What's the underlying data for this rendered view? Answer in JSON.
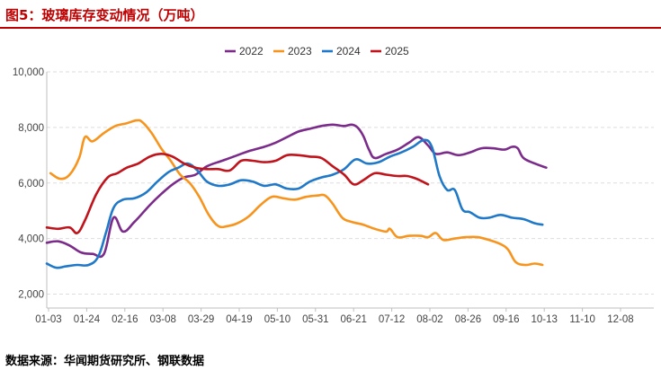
{
  "header": {
    "title": "图5：玻璃库存变动情况（万吨）"
  },
  "footer": {
    "source": "数据来源：华闻期货研究所、钢联数据"
  },
  "colors": {
    "2022": "#7B2C8A",
    "2023": "#F7941D",
    "2024": "#1F78C8",
    "2025": "#C0141C",
    "grid": "#dddddd",
    "axis": "#bfbfbf",
    "title": "#c00000"
  },
  "chart_data": {
    "type": "line",
    "title": "玻璃库存变动情况（万吨）",
    "xlabel": "",
    "ylabel": "",
    "ylim": [
      1500,
      10000
    ],
    "y_ticks": [
      2000,
      4000,
      6000,
      8000,
      10000
    ],
    "y_tick_labels": [
      "2,000",
      "4,000",
      "6,000",
      "8,000",
      "10,000"
    ],
    "grid": true,
    "legend_position": "top-center",
    "categories": [
      "01-03",
      "01-24",
      "02-16",
      "03-08",
      "03-29",
      "04-19",
      "05-10",
      "05-31",
      "06-21",
      "07-12",
      "08-02",
      "08-26",
      "09-16",
      "10-13",
      "11-10",
      "12-08"
    ],
    "series": [
      {
        "name": "2022",
        "values": [
          [
            0,
            3850
          ],
          [
            0.3,
            3900
          ],
          [
            0.6,
            3750
          ],
          [
            0.9,
            3500
          ],
          [
            1.2,
            3450
          ],
          [
            1.5,
            3450
          ],
          [
            1.75,
            4750
          ],
          [
            2.0,
            4250
          ],
          [
            2.3,
            4600
          ],
          [
            2.7,
            5200
          ],
          [
            3.0,
            5600
          ],
          [
            3.3,
            5950
          ],
          [
            3.6,
            6200
          ],
          [
            3.9,
            6300
          ],
          [
            4.2,
            6600
          ],
          [
            4.6,
            6800
          ],
          [
            5.0,
            7000
          ],
          [
            5.3,
            7150
          ],
          [
            5.7,
            7300
          ],
          [
            6.0,
            7450
          ],
          [
            6.3,
            7650
          ],
          [
            6.6,
            7850
          ],
          [
            6.9,
            7950
          ],
          [
            7.2,
            8050
          ],
          [
            7.5,
            8100
          ],
          [
            7.8,
            8050
          ],
          [
            8.0,
            8100
          ],
          [
            8.15,
            8000
          ],
          [
            8.3,
            7700
          ],
          [
            8.45,
            7200
          ],
          [
            8.6,
            6900
          ],
          [
            8.9,
            7050
          ],
          [
            9.2,
            7200
          ],
          [
            9.5,
            7450
          ],
          [
            9.75,
            7650
          ],
          [
            10.0,
            7350
          ],
          [
            10.2,
            7050
          ],
          [
            10.5,
            7100
          ],
          [
            10.8,
            7000
          ],
          [
            11.1,
            7100
          ],
          [
            11.4,
            7250
          ],
          [
            11.7,
            7250
          ],
          [
            12.0,
            7200
          ],
          [
            12.2,
            7300
          ],
          [
            12.35,
            7250
          ],
          [
            12.5,
            6900
          ],
          [
            12.8,
            6700
          ],
          [
            13.1,
            6550
          ]
        ]
      },
      {
        "name": "2023",
        "values": [
          [
            0.1,
            6350
          ],
          [
            0.35,
            6150
          ],
          [
            0.6,
            6300
          ],
          [
            0.85,
            6900
          ],
          [
            1.0,
            7650
          ],
          [
            1.2,
            7500
          ],
          [
            1.5,
            7800
          ],
          [
            1.8,
            8050
          ],
          [
            2.1,
            8150
          ],
          [
            2.35,
            8250
          ],
          [
            2.5,
            8200
          ],
          [
            2.75,
            7800
          ],
          [
            3.0,
            7250
          ],
          [
            3.25,
            6800
          ],
          [
            3.5,
            6300
          ],
          [
            3.75,
            6000
          ],
          [
            4.0,
            5500
          ],
          [
            4.25,
            4850
          ],
          [
            4.5,
            4450
          ],
          [
            4.75,
            4450
          ],
          [
            5.0,
            4550
          ],
          [
            5.3,
            4800
          ],
          [
            5.6,
            5200
          ],
          [
            5.9,
            5500
          ],
          [
            6.2,
            5450
          ],
          [
            6.5,
            5400
          ],
          [
            6.8,
            5500
          ],
          [
            7.1,
            5550
          ],
          [
            7.3,
            5550
          ],
          [
            7.5,
            5250
          ],
          [
            7.75,
            4750
          ],
          [
            8.0,
            4600
          ],
          [
            8.3,
            4500
          ],
          [
            8.6,
            4350
          ],
          [
            8.9,
            4250
          ],
          [
            9.0,
            4350
          ],
          [
            9.2,
            4050
          ],
          [
            9.5,
            4100
          ],
          [
            9.8,
            4100
          ],
          [
            10.0,
            4050
          ],
          [
            10.2,
            4200
          ],
          [
            10.4,
            3950
          ],
          [
            10.7,
            4000
          ],
          [
            11.0,
            4050
          ],
          [
            11.3,
            4050
          ],
          [
            11.6,
            3950
          ],
          [
            11.9,
            3800
          ],
          [
            12.1,
            3600
          ],
          [
            12.3,
            3150
          ],
          [
            12.55,
            3050
          ],
          [
            12.8,
            3100
          ],
          [
            13.0,
            3050
          ]
        ]
      },
      {
        "name": "2024",
        "values": [
          [
            0,
            3100
          ],
          [
            0.25,
            2950
          ],
          [
            0.5,
            3000
          ],
          [
            0.8,
            3050
          ],
          [
            1.1,
            3050
          ],
          [
            1.35,
            3350
          ],
          [
            1.55,
            4200
          ],
          [
            1.75,
            5100
          ],
          [
            2.0,
            5400
          ],
          [
            2.3,
            5450
          ],
          [
            2.6,
            5650
          ],
          [
            2.9,
            6050
          ],
          [
            3.2,
            6400
          ],
          [
            3.45,
            6550
          ],
          [
            3.7,
            6700
          ],
          [
            3.95,
            6450
          ],
          [
            4.2,
            6050
          ],
          [
            4.5,
            5900
          ],
          [
            4.8,
            5950
          ],
          [
            5.1,
            6100
          ],
          [
            5.4,
            6050
          ],
          [
            5.7,
            5900
          ],
          [
            6.0,
            5950
          ],
          [
            6.3,
            5800
          ],
          [
            6.6,
            5800
          ],
          [
            6.9,
            6050
          ],
          [
            7.2,
            6200
          ],
          [
            7.5,
            6300
          ],
          [
            7.8,
            6500
          ],
          [
            8.1,
            6850
          ],
          [
            8.4,
            6700
          ],
          [
            8.7,
            6750
          ],
          [
            9.0,
            6950
          ],
          [
            9.3,
            7100
          ],
          [
            9.6,
            7300
          ],
          [
            9.9,
            7550
          ],
          [
            10.1,
            7300
          ],
          [
            10.3,
            6250
          ],
          [
            10.5,
            5750
          ],
          [
            10.7,
            5750
          ],
          [
            10.9,
            5050
          ],
          [
            11.1,
            4950
          ],
          [
            11.35,
            4750
          ],
          [
            11.6,
            4750
          ],
          [
            11.9,
            4850
          ],
          [
            12.2,
            4750
          ],
          [
            12.5,
            4700
          ],
          [
            12.8,
            4550
          ],
          [
            13.0,
            4500
          ]
        ]
      },
      {
        "name": "2025",
        "values": [
          [
            0,
            4400
          ],
          [
            0.3,
            4350
          ],
          [
            0.6,
            4400
          ],
          [
            0.8,
            4200
          ],
          [
            1.0,
            4650
          ],
          [
            1.3,
            5600
          ],
          [
            1.6,
            6200
          ],
          [
            1.85,
            6350
          ],
          [
            2.1,
            6550
          ],
          [
            2.4,
            6700
          ],
          [
            2.7,
            6950
          ],
          [
            3.0,
            7050
          ],
          [
            3.3,
            6950
          ],
          [
            3.6,
            6700
          ],
          [
            3.9,
            6550
          ],
          [
            4.2,
            6500
          ],
          [
            4.5,
            6500
          ],
          [
            4.8,
            6450
          ],
          [
            5.1,
            6800
          ],
          [
            5.4,
            6800
          ],
          [
            5.7,
            6750
          ],
          [
            6.0,
            6800
          ],
          [
            6.3,
            7000
          ],
          [
            6.6,
            7000
          ],
          [
            6.9,
            6950
          ],
          [
            7.2,
            6900
          ],
          [
            7.5,
            6600
          ],
          [
            7.8,
            6300
          ],
          [
            8.05,
            5950
          ],
          [
            8.3,
            6100
          ],
          [
            8.6,
            6350
          ],
          [
            8.9,
            6300
          ],
          [
            9.2,
            6250
          ],
          [
            9.45,
            6250
          ],
          [
            9.7,
            6150
          ],
          [
            10.0,
            5950
          ]
        ]
      }
    ]
  }
}
